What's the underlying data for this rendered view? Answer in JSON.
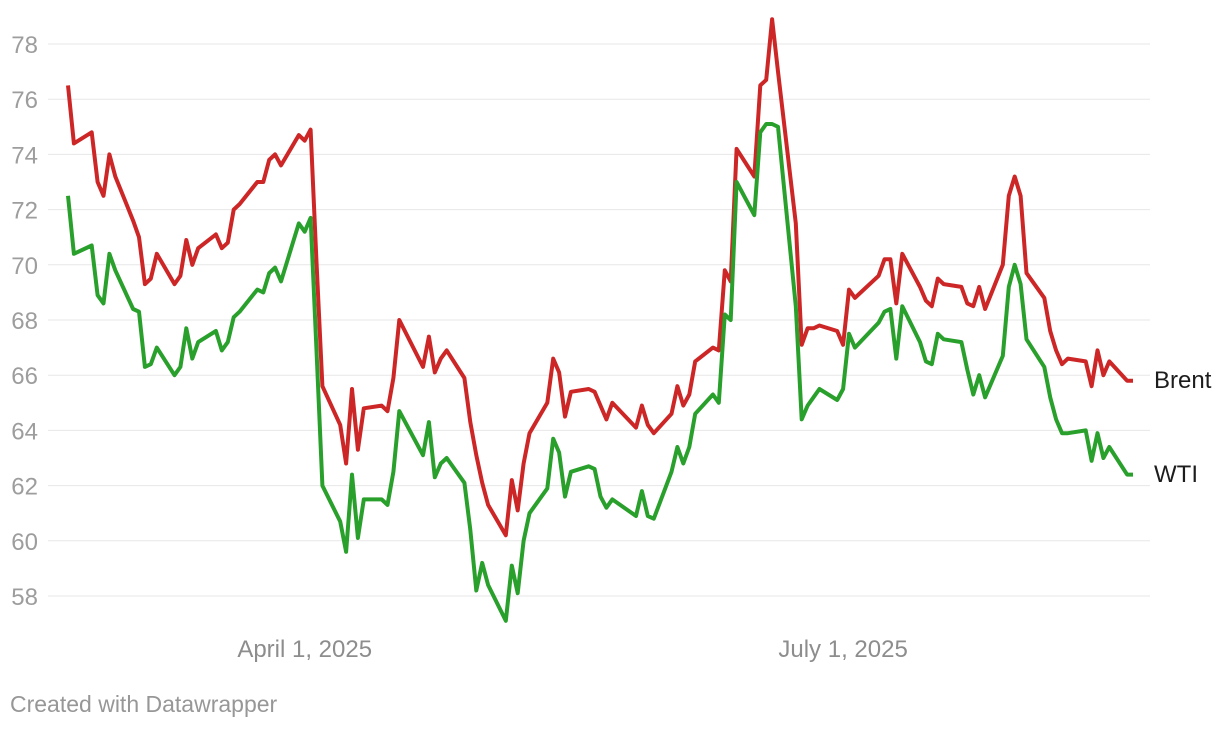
{
  "attribution": "Created with Datawrapper",
  "chart_data": {
    "type": "line",
    "title": "",
    "xlabel": "",
    "ylabel": "",
    "grid": "horizontal",
    "legend_position": "right-of-line-ends",
    "background": "#ffffff",
    "grid_color": "#e7e7e7",
    "y_axis": {
      "ticks": [
        58,
        60,
        62,
        64,
        66,
        68,
        70,
        72,
        74,
        76,
        78
      ],
      "tick_color": "#9d9d9d",
      "range": [
        57.1,
        78.9
      ]
    },
    "x_axis": {
      "tick_labels": [
        {
          "date": "2025-04-01",
          "label": "April 1, 2025"
        },
        {
          "date": "2025-07-01",
          "label": "July 1, 2025"
        }
      ],
      "tick_color": "#8d8d8d"
    },
    "dates": [
      "2025-02-20",
      "2025-02-21",
      "2025-02-24",
      "2025-02-25",
      "2025-02-26",
      "2025-02-27",
      "2025-02-28",
      "2025-03-03",
      "2025-03-04",
      "2025-03-05",
      "2025-03-06",
      "2025-03-07",
      "2025-03-10",
      "2025-03-11",
      "2025-03-12",
      "2025-03-13",
      "2025-03-14",
      "2025-03-17",
      "2025-03-18",
      "2025-03-19",
      "2025-03-20",
      "2025-03-21",
      "2025-03-24",
      "2025-03-25",
      "2025-03-26",
      "2025-03-27",
      "2025-03-28",
      "2025-03-31",
      "2025-04-01",
      "2025-04-02",
      "2025-04-03",
      "2025-04-04",
      "2025-04-07",
      "2025-04-08",
      "2025-04-09",
      "2025-04-10",
      "2025-04-11",
      "2025-04-14",
      "2025-04-15",
      "2025-04-16",
      "2025-04-17",
      "2025-04-21",
      "2025-04-22",
      "2025-04-23",
      "2025-04-24",
      "2025-04-25",
      "2025-04-28",
      "2025-04-29",
      "2025-04-30",
      "2025-05-01",
      "2025-05-02",
      "2025-05-05",
      "2025-05-06",
      "2025-05-07",
      "2025-05-08",
      "2025-05-09",
      "2025-05-12",
      "2025-05-13",
      "2025-05-14",
      "2025-05-15",
      "2025-05-16",
      "2025-05-19",
      "2025-05-20",
      "2025-05-21",
      "2025-05-22",
      "2025-05-23",
      "2025-05-27",
      "2025-05-28",
      "2025-05-29",
      "2025-05-30",
      "2025-06-02",
      "2025-06-03",
      "2025-06-04",
      "2025-06-05",
      "2025-06-06",
      "2025-06-09",
      "2025-06-10",
      "2025-06-11",
      "2025-06-12",
      "2025-06-13",
      "2025-06-16",
      "2025-06-17",
      "2025-06-18",
      "2025-06-19",
      "2025-06-20",
      "2025-06-23",
      "2025-06-24",
      "2025-06-25",
      "2025-06-26",
      "2025-06-27",
      "2025-06-30",
      "2025-07-01",
      "2025-07-02",
      "2025-07-03",
      "2025-07-07",
      "2025-07-08",
      "2025-07-09",
      "2025-07-10",
      "2025-07-11",
      "2025-07-14",
      "2025-07-15",
      "2025-07-16",
      "2025-07-17",
      "2025-07-18",
      "2025-07-21",
      "2025-07-22",
      "2025-07-23",
      "2025-07-24",
      "2025-07-25",
      "2025-07-28",
      "2025-07-29",
      "2025-07-30",
      "2025-07-31",
      "2025-08-01",
      "2025-08-04",
      "2025-08-05",
      "2025-08-06",
      "2025-08-07",
      "2025-08-08",
      "2025-08-11",
      "2025-08-12",
      "2025-08-13",
      "2025-08-14",
      "2025-08-15",
      "2025-08-18",
      "2025-08-19"
    ],
    "series": [
      {
        "name": "Brent",
        "color": "#cd2626",
        "values": [
          76.5,
          74.4,
          74.8,
          73.0,
          72.5,
          74.0,
          73.2,
          71.6,
          71.0,
          69.3,
          69.5,
          70.4,
          69.3,
          69.6,
          70.9,
          70.0,
          70.6,
          71.1,
          70.6,
          70.8,
          72.0,
          72.2,
          73.0,
          73.0,
          73.8,
          74.0,
          73.6,
          74.7,
          74.5,
          74.9,
          70.1,
          65.6,
          64.2,
          62.8,
          65.5,
          63.3,
          64.8,
          64.9,
          64.7,
          65.9,
          68.0,
          66.3,
          67.4,
          66.1,
          66.6,
          66.9,
          65.9,
          64.3,
          63.1,
          62.1,
          61.3,
          60.2,
          62.2,
          61.1,
          62.8,
          63.9,
          65.0,
          66.6,
          66.1,
          64.5,
          65.4,
          65.5,
          65.4,
          64.9,
          64.4,
          65.0,
          64.1,
          64.9,
          64.2,
          63.9,
          64.6,
          65.6,
          64.9,
          65.3,
          66.5,
          67.0,
          66.9,
          69.8,
          69.4,
          74.2,
          73.2,
          76.5,
          76.7,
          78.9,
          77.0,
          71.5,
          67.1,
          67.7,
          67.7,
          67.8,
          67.6,
          67.1,
          69.1,
          68.8,
          69.6,
          70.2,
          70.2,
          68.6,
          70.4,
          69.2,
          68.7,
          68.5,
          69.5,
          69.3,
          69.2,
          68.6,
          68.5,
          69.2,
          68.4,
          70.0,
          72.5,
          73.2,
          72.5,
          69.7,
          68.8,
          67.6,
          66.9,
          66.4,
          66.6,
          66.5,
          65.6,
          66.9,
          66.0,
          66.5,
          65.8,
          65.8
        ]
      },
      {
        "name": "WTI",
        "color": "#2aa02c",
        "values": [
          72.5,
          70.4,
          70.7,
          68.9,
          68.6,
          70.4,
          69.8,
          68.4,
          68.3,
          66.3,
          66.4,
          67.0,
          66.0,
          66.3,
          67.7,
          66.6,
          67.2,
          67.6,
          66.9,
          67.2,
          68.1,
          68.3,
          69.1,
          69.0,
          69.7,
          69.9,
          69.4,
          71.5,
          71.2,
          71.7,
          66.9,
          62.0,
          60.7,
          59.6,
          62.4,
          60.1,
          61.5,
          61.5,
          61.3,
          62.5,
          64.7,
          63.1,
          64.3,
          62.3,
          62.8,
          63.0,
          62.1,
          60.4,
          58.2,
          59.2,
          58.4,
          57.1,
          59.1,
          58.1,
          60.0,
          61.0,
          61.9,
          63.7,
          63.2,
          61.6,
          62.5,
          62.7,
          62.6,
          61.6,
          61.2,
          61.5,
          60.9,
          61.8,
          60.9,
          60.8,
          62.5,
          63.4,
          62.8,
          63.4,
          64.6,
          65.3,
          65.0,
          68.2,
          68.0,
          73.0,
          71.8,
          74.8,
          75.1,
          75.1,
          75.0,
          68.5,
          64.4,
          64.9,
          65.2,
          65.5,
          65.1,
          65.5,
          67.5,
          67.0,
          67.9,
          68.3,
          68.4,
          66.6,
          68.5,
          67.2,
          66.5,
          66.4,
          67.5,
          67.3,
          67.2,
          66.2,
          65.3,
          66.0,
          65.2,
          66.7,
          69.2,
          70.0,
          69.3,
          67.3,
          66.3,
          65.2,
          64.4,
          63.9,
          63.9,
          64.0,
          62.9,
          63.9,
          63.0,
          63.4,
          62.4,
          62.4
        ]
      }
    ]
  }
}
